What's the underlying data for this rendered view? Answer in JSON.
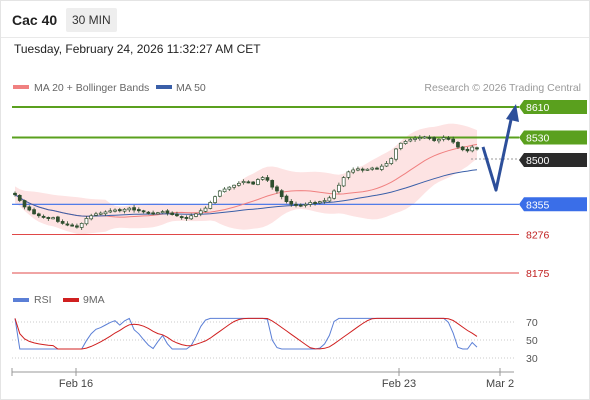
{
  "header": {
    "title": "Cac 40",
    "timeframe": "30 MIN",
    "datetime": "Tuesday, February 24, 2026 11:32:27 AM CET"
  },
  "legend": {
    "ma20_label": "MA 20 + Bollinger Bands",
    "ma50_label": "MA 50",
    "credit": "Research © 2026 Trading Central"
  },
  "rsi_legend": {
    "rsi_label": "RSI",
    "ma_label": "9MA"
  },
  "colors": {
    "ma20": "#f08080",
    "ma50": "#3a5fa8",
    "bollinger_fill": "#fde3e3",
    "resistance": "#5aa01e",
    "support_blue": "#3a6ee8",
    "support_red": "#e04848",
    "candle": "#2f4f2f",
    "rsi_line": "#5b7fd6",
    "rsi_ma": "#d02020",
    "arrow": "#2d4f9a"
  },
  "chart_data": [
    {
      "type": "line",
      "panel": "price",
      "x_ticks": [
        "Feb 16",
        "Feb 23",
        "Mar 2"
      ],
      "y_range": [
        8115,
        8628
      ],
      "levels": [
        {
          "value": 8610,
          "label": "8610",
          "kind": "resistance"
        },
        {
          "value": 8530,
          "label": "8530",
          "kind": "resistance"
        },
        {
          "value": 8500,
          "label": "8500",
          "kind": "current"
        },
        {
          "value": 8355,
          "label": "8355",
          "kind": "pivot"
        },
        {
          "value": 8276,
          "label": "8276",
          "kind": "support"
        },
        {
          "value": 8175,
          "label": "8175",
          "kind": "support"
        }
      ],
      "close": [
        8380,
        8365,
        8348,
        8340,
        8330,
        8325,
        8322,
        8318,
        8320,
        8310,
        8305,
        8302,
        8300,
        8295,
        8305,
        8318,
        8325,
        8330,
        8332,
        8335,
        8338,
        8340,
        8338,
        8342,
        8345,
        8340,
        8338,
        8335,
        8332,
        8330,
        8333,
        8336,
        8332,
        8328,
        8325,
        8320,
        8318,
        8325,
        8330,
        8338,
        8345,
        8360,
        8375,
        8390,
        8395,
        8400,
        8405,
        8410,
        8415,
        8412,
        8408,
        8420,
        8425,
        8418,
        8400,
        8390,
        8375,
        8362,
        8355,
        8352,
        8350,
        8355,
        8360,
        8358,
        8362,
        8365,
        8372,
        8390,
        8405,
        8425,
        8440,
        8445,
        8448,
        8445,
        8447,
        8450,
        8448,
        8455,
        8462,
        8475,
        8500,
        8515,
        8520,
        8525,
        8528,
        8530,
        8532,
        8528,
        8522,
        8525,
        8530,
        8525,
        8518,
        8505,
        8498,
        8495,
        8505,
        8500
      ],
      "series": [
        {
          "name": "MA 20 + Bollinger Bands",
          "role": "ma20"
        },
        {
          "name": "MA 50",
          "role": "ma50"
        }
      ],
      "forecast_path": [
        8500,
        8450,
        8610
      ]
    },
    {
      "type": "line",
      "panel": "rsi",
      "y_ticks": [
        70,
        50,
        30
      ],
      "y_range": [
        20,
        80
      ],
      "series": [
        {
          "name": "RSI"
        },
        {
          "name": "9MA"
        }
      ]
    }
  ]
}
